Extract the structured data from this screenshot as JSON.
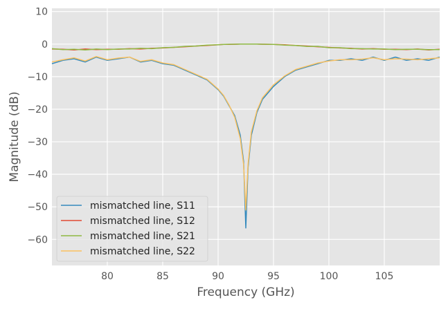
{
  "chart_data": {
    "type": "line",
    "title": "",
    "xlabel": "Frequency (GHz)",
    "ylabel": "Magnitude (dB)",
    "xlim": [
      75.0,
      110.0
    ],
    "ylim": [
      -68.0,
      11.0
    ],
    "xticks": [
      80,
      85,
      90,
      95,
      100,
      105
    ],
    "xtick_labels": [
      "80",
      "85",
      "90",
      "95",
      "100",
      "105"
    ],
    "yticks": [
      10,
      0,
      -10,
      -20,
      -30,
      -40,
      -50,
      -60
    ],
    "ytick_labels": [
      "10",
      "0",
      "−10",
      "−20",
      "−30",
      "−40",
      "−50",
      "−60"
    ],
    "grid": true,
    "legend_position": "lower-left",
    "x": [
      75.0,
      76.0,
      77.0,
      78.0,
      79.0,
      80.0,
      81.0,
      82.0,
      83.0,
      84.0,
      85.0,
      86.0,
      87.0,
      88.0,
      89.0,
      90.0,
      90.5,
      91.0,
      91.5,
      92.0,
      92.3,
      92.5,
      92.7,
      93.0,
      93.5,
      94.0,
      95.0,
      96.0,
      97.0,
      98.0,
      99.0,
      100.0,
      101.0,
      102.0,
      103.0,
      104.0,
      105.0,
      106.0,
      107.0,
      108.0,
      109.0,
      110.0
    ],
    "series": [
      {
        "name": "mismatched line, S11",
        "color": "#348abd",
        "values": [
          -6.0,
          -5.0,
          -4.5,
          -5.5,
          -4.0,
          -5.0,
          -4.5,
          -4.0,
          -5.5,
          -5.0,
          -6.0,
          -6.5,
          -8.0,
          -9.5,
          -11.0,
          -14.0,
          -16.0,
          -19.0,
          -22.0,
          -28.0,
          -36.0,
          -56.5,
          -38.0,
          -28.0,
          -21.0,
          -17.0,
          -13.0,
          -10.0,
          -8.0,
          -7.0,
          -6.0,
          -5.0,
          -5.0,
          -4.5,
          -5.0,
          -4.0,
          -5.0,
          -4.0,
          -5.0,
          -4.5,
          -5.0,
          -4.0
        ]
      },
      {
        "name": "mismatched line, S12",
        "color": "#e24a33",
        "values": [
          -1.5,
          -1.6,
          -1.8,
          -1.5,
          -1.7,
          -1.6,
          -1.6,
          -1.4,
          -1.5,
          -1.3,
          -1.2,
          -1.0,
          -0.8,
          -0.6,
          -0.4,
          -0.2,
          -0.1,
          -0.1,
          -0.05,
          0.0,
          0.0,
          0.0,
          0.0,
          0.0,
          0.0,
          -0.05,
          -0.1,
          -0.2,
          -0.4,
          -0.6,
          -0.8,
          -1.0,
          -1.2,
          -1.3,
          -1.5,
          -1.4,
          -1.6,
          -1.6,
          -1.7,
          -1.5,
          -1.8,
          -1.6
        ]
      },
      {
        "name": "mismatched line, S21",
        "color": "#8eba42",
        "values": [
          -1.4,
          -1.7,
          -1.6,
          -1.8,
          -1.5,
          -1.7,
          -1.5,
          -1.5,
          -1.3,
          -1.4,
          -1.1,
          -1.0,
          -0.7,
          -0.6,
          -0.3,
          -0.2,
          -0.1,
          -0.05,
          -0.05,
          0.0,
          0.0,
          0.0,
          0.0,
          0.0,
          0.0,
          -0.05,
          -0.1,
          -0.3,
          -0.4,
          -0.7,
          -0.7,
          -1.1,
          -1.1,
          -1.4,
          -1.4,
          -1.5,
          -1.5,
          -1.7,
          -1.6,
          -1.6,
          -1.7,
          -1.7
        ]
      },
      {
        "name": "mismatched line, S22",
        "color": "#fbc15e",
        "values": [
          -5.5,
          -4.8,
          -4.2,
          -5.2,
          -3.8,
          -4.8,
          -4.3,
          -4.0,
          -5.3,
          -4.8,
          -5.8,
          -6.3,
          -7.8,
          -9.3,
          -10.8,
          -13.8,
          -15.8,
          -18.8,
          -22.5,
          -29.0,
          -37.0,
          -51.0,
          -37.0,
          -27.0,
          -20.5,
          -16.5,
          -12.5,
          -9.8,
          -7.8,
          -6.8,
          -5.8,
          -5.2,
          -4.8,
          -4.8,
          -4.6,
          -4.2,
          -4.8,
          -4.5,
          -4.6,
          -4.8,
          -4.5,
          -4.2
        ]
      }
    ]
  }
}
